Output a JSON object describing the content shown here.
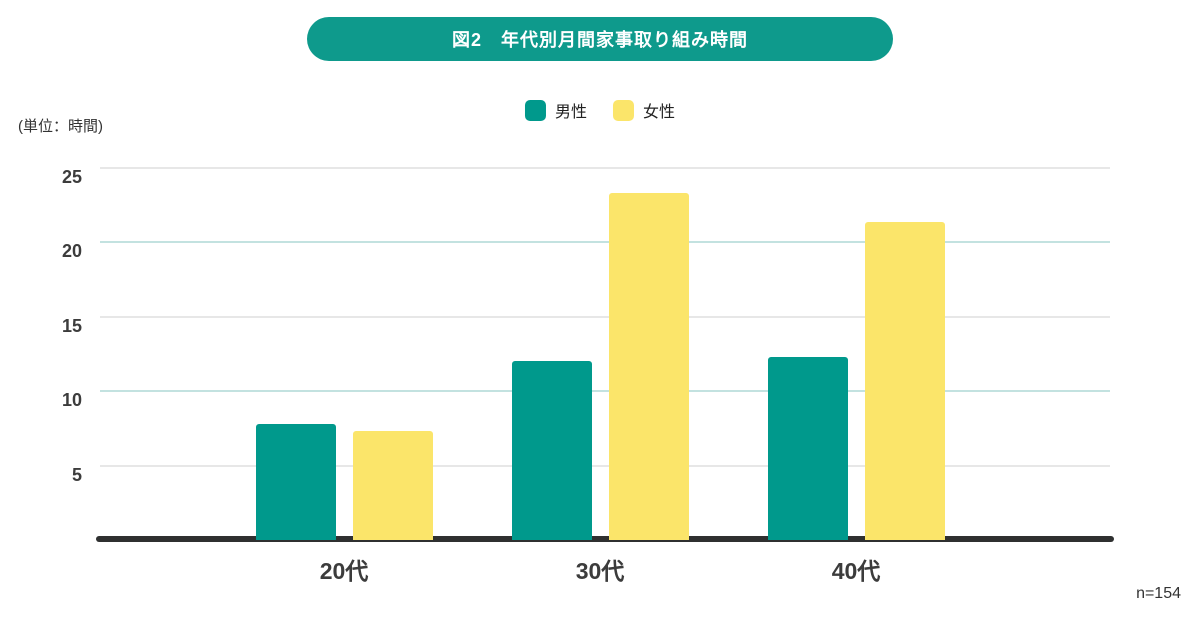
{
  "header": {
    "title": "図2　年代別月間家事取り組み時間"
  },
  "unit_label": "(単位：時間)",
  "footnote": "n=154",
  "colors": {
    "accent_teal": "#0E9A8C",
    "bar_male": "#00998C",
    "bar_female": "#FBE56A",
    "gridline_minor": "#E7E7E7",
    "gridline_major": "#C3E2E0",
    "axis_line": "#2F3030"
  },
  "legend": [
    {
      "label": "男性",
      "color": "#00998C"
    },
    {
      "label": "女性",
      "color": "#FBE56A"
    }
  ],
  "chart_data": {
    "type": "bar",
    "title": "図2　年代別月間家事取り組み時間",
    "categories": [
      "20代",
      "30代",
      "40代"
    ],
    "series": [
      {
        "name": "男性",
        "color": "#00998C",
        "values": [
          7.8,
          12.0,
          12.3
        ]
      },
      {
        "name": "女性",
        "color": "#FBE56A",
        "values": [
          7.3,
          23.3,
          21.4
        ]
      }
    ],
    "xlabel": "",
    "ylabel": "(単位：時間)",
    "yticks": [
      5,
      10,
      15,
      20,
      25
    ],
    "ylim": [
      0,
      25
    ],
    "grid": "horizontal",
    "legend_position": "top",
    "note": "n=154"
  }
}
